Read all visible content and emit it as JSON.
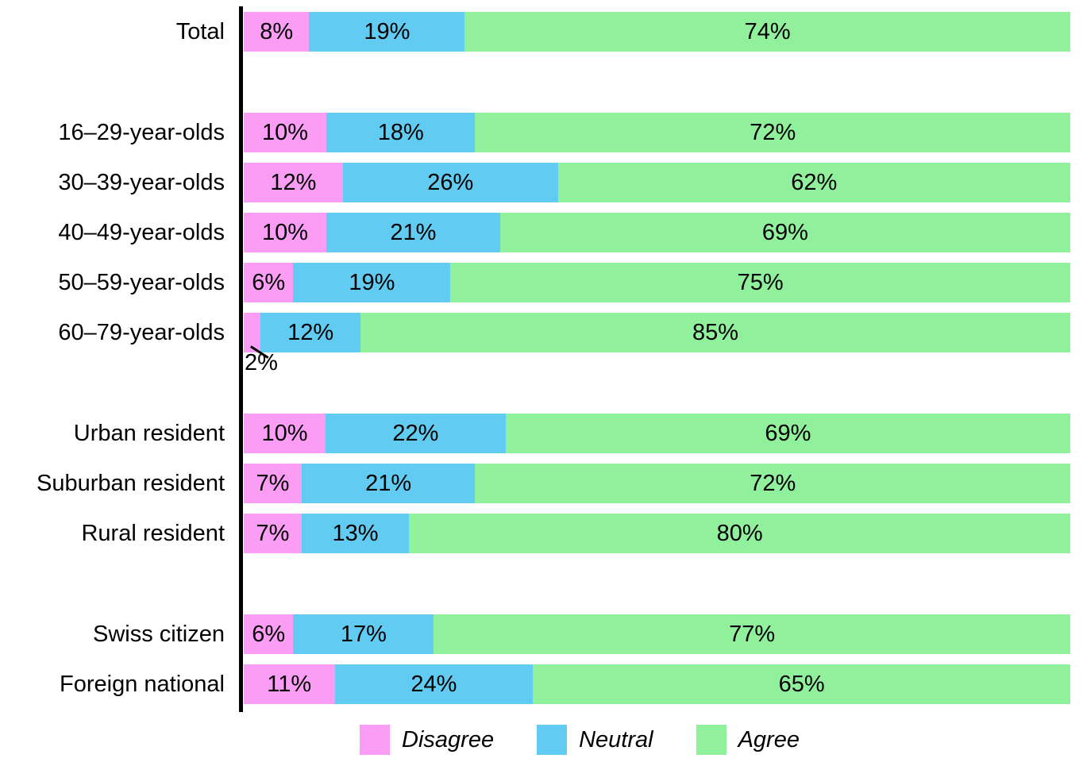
{
  "chart_data": {
    "type": "bar",
    "orientation": "horizontal",
    "stacked": true,
    "unit": "%",
    "title": "",
    "xlabel": "",
    "ylabel": "",
    "grid": false,
    "legend_position": "bottom",
    "axis_color": "#000000",
    "text_color": "#000000",
    "series": [
      {
        "name": "Disagree",
        "color": "#FB9DF4"
      },
      {
        "name": "Neutral",
        "color": "#62CBF1"
      },
      {
        "name": "Agree",
        "color": "#90F09B"
      }
    ],
    "rows": [
      {
        "label": "Total",
        "values": [
          8,
          19,
          74
        ],
        "labels": [
          "8%",
          "19%",
          "74%"
        ]
      },
      {
        "label": "16–29-year-olds",
        "values": [
          10,
          18,
          72
        ],
        "labels": [
          "10%",
          "18%",
          "72%"
        ],
        "new_group": true
      },
      {
        "label": "30–39-year-olds",
        "values": [
          12,
          26,
          62
        ],
        "labels": [
          "12%",
          "26%",
          "62%"
        ]
      },
      {
        "label": "40–49-year-olds",
        "values": [
          10,
          21,
          69
        ],
        "labels": [
          "10%",
          "21%",
          "69%"
        ]
      },
      {
        "label": "50–59-year-olds",
        "values": [
          6,
          19,
          75
        ],
        "labels": [
          "6%",
          "19%",
          "75%"
        ]
      },
      {
        "label": "60–79-year-olds",
        "values": [
          2,
          12,
          85
        ],
        "labels": [
          "2%",
          "12%",
          "85%"
        ],
        "callout": {
          "segment": 0
        }
      },
      {
        "label": "Urban resident",
        "values": [
          10,
          22,
          69
        ],
        "labels": [
          "10%",
          "22%",
          "69%"
        ],
        "new_group": true
      },
      {
        "label": "Suburban resident",
        "values": [
          7,
          21,
          72
        ],
        "labels": [
          "7%",
          "21%",
          "72%"
        ]
      },
      {
        "label": "Rural resident",
        "values": [
          7,
          13,
          80
        ],
        "labels": [
          "7%",
          "13%",
          "80%"
        ]
      },
      {
        "label": "Swiss citizen",
        "values": [
          6,
          17,
          77
        ],
        "labels": [
          "6%",
          "17%",
          "77%"
        ],
        "new_group": true
      },
      {
        "label": "Foreign national",
        "values": [
          11,
          24,
          65
        ],
        "labels": [
          "11%",
          "24%",
          "65%"
        ]
      }
    ],
    "legend": [
      "Disagree",
      "Neutral",
      "Agree"
    ]
  }
}
